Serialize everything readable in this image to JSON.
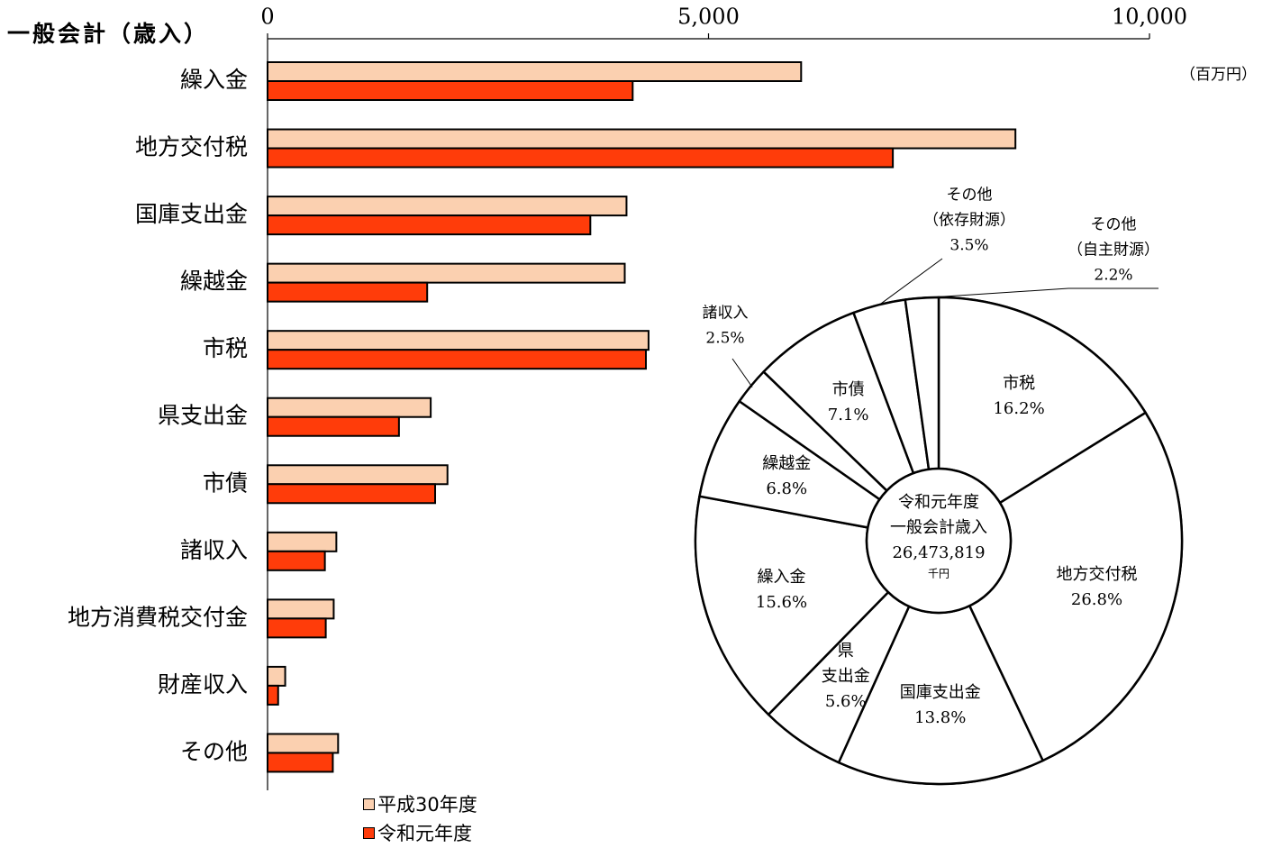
{
  "colors": {
    "prev_year": "#FBD0B0",
    "curr_year": "#FF3C0A",
    "axis": "#000000"
  },
  "chart_data": [
    {
      "type": "bar",
      "orientation": "horizontal",
      "title": "一般会計（歳入）",
      "unit": "（百万円）",
      "xlim": [
        0,
        10000
      ],
      "x_ticks": [
        0,
        5000,
        10000
      ],
      "x_tick_labels": [
        "0",
        "5,000",
        "10,000"
      ],
      "grid": false,
      "legend_position": "bottom",
      "categories": [
        "繰入金",
        "地方交付税",
        "国庫支出金",
        "繰越金",
        "市税",
        "県支出金",
        "市債",
        "諸収入",
        "地方消費税交付金",
        "財産収入",
        "その他"
      ],
      "series": [
        {
          "name": "平成30年度",
          "values": [
            6050,
            8480,
            4070,
            4050,
            4320,
            1850,
            2040,
            780,
            750,
            200,
            800
          ]
        },
        {
          "name": "令和元年度",
          "values": [
            4140,
            7090,
            3660,
            1810,
            4290,
            1490,
            1900,
            650,
            660,
            120,
            740
          ]
        }
      ]
    },
    {
      "type": "pie",
      "style": "donut",
      "center_label": [
        "令和元年度",
        "一般会計歳入",
        "26,473,819",
        "千円"
      ],
      "slices": [
        {
          "label": "市税",
          "value": 16.2,
          "value_label": "16.2%"
        },
        {
          "label": "地方交付税",
          "value": 26.8,
          "value_label": "26.8%"
        },
        {
          "label": "国庫支出金",
          "value": 13.8,
          "value_label": "13.8%"
        },
        {
          "label": "県支出金",
          "display_lines": [
            "県",
            "支出金"
          ],
          "value": 5.6,
          "value_label": "5.6%"
        },
        {
          "label": "繰入金",
          "value": 15.6,
          "value_label": "15.6%"
        },
        {
          "label": "繰越金",
          "value": 6.8,
          "value_label": "6.8%"
        },
        {
          "label": "諸収入",
          "value": 2.5,
          "value_label": "2.5%",
          "callout": true
        },
        {
          "label": "市債",
          "value": 7.1,
          "value_label": "7.1%"
        },
        {
          "label": "その他",
          "sublabel": "（依存財源）",
          "value": 3.5,
          "value_label": "3.5%",
          "callout": true
        },
        {
          "label": "その他",
          "sublabel": "（自主財源）",
          "value": 2.2,
          "value_label": "2.2%",
          "callout": true
        }
      ]
    }
  ]
}
